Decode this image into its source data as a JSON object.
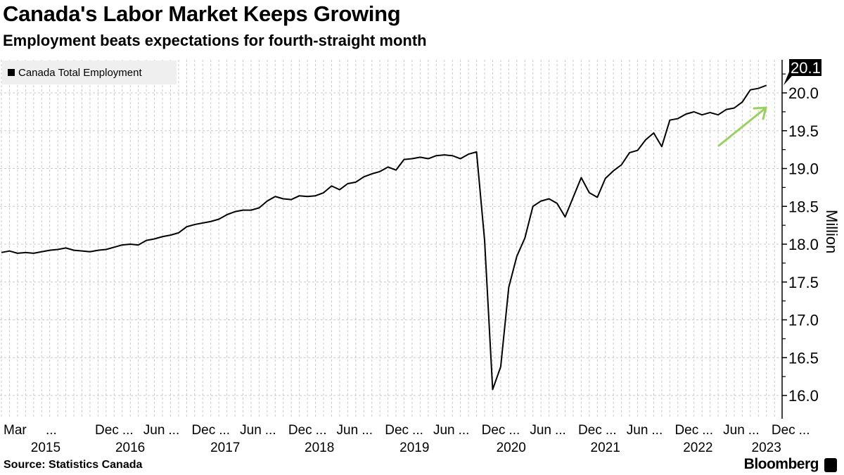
{
  "chart_data": {
    "type": "line",
    "title": "Canada's Labor Market Keeps Growing",
    "subtitle": "Employment beats expectations for fourth-straight month",
    "ylabel": "Million",
    "xlabel": "",
    "ylim": [
      15.7,
      20.4
    ],
    "yticks": [
      "16.0",
      "16.5",
      "17.0",
      "17.5",
      "18.0",
      "18.5",
      "19.0",
      "19.5",
      "20.0"
    ],
    "grid": true,
    "legend_placement": "top-left",
    "series": [
      {
        "name": "Canada Total Employment",
        "start": "Mar 2015",
        "frequency": "monthly",
        "values": [
          17.89,
          17.91,
          17.88,
          17.89,
          17.88,
          17.9,
          17.92,
          17.93,
          17.95,
          17.92,
          17.91,
          17.9,
          17.92,
          17.93,
          17.96,
          17.99,
          18.0,
          17.99,
          18.05,
          18.07,
          18.1,
          18.12,
          18.15,
          18.23,
          18.26,
          18.28,
          18.3,
          18.33,
          18.39,
          18.43,
          18.45,
          18.45,
          18.48,
          18.57,
          18.63,
          18.6,
          18.59,
          18.64,
          18.63,
          18.64,
          18.68,
          18.77,
          18.72,
          18.8,
          18.82,
          18.89,
          18.93,
          18.96,
          19.02,
          18.98,
          19.12,
          19.13,
          19.15,
          19.13,
          19.17,
          19.18,
          19.17,
          19.13,
          19.19,
          19.22,
          18.05,
          16.08,
          16.38,
          17.43,
          17.84,
          18.08,
          18.5,
          18.57,
          18.6,
          18.54,
          18.36,
          18.62,
          18.88,
          18.68,
          18.62,
          18.87,
          18.97,
          19.05,
          19.21,
          19.24,
          19.38,
          19.47,
          19.29,
          19.64,
          19.66,
          19.72,
          19.75,
          19.71,
          19.74,
          19.71,
          19.78,
          19.8,
          19.88,
          20.04,
          20.06,
          20.1
        ]
      }
    ],
    "last_value_label": "20.1",
    "x_tick_labels": [
      {
        "text": "Mar",
        "m": 0
      },
      {
        "text": "...",
        "m": 5
      },
      {
        "text": "Dec",
        "m": 9
      },
      {
        "text": "...",
        "m": 11
      },
      {
        "text": "Jun",
        "m": 15
      },
      {
        "text": "...",
        "m": 17
      },
      {
        "text": "Dec",
        "m": 21
      },
      {
        "text": "...",
        "m": 23
      },
      {
        "text": "Jun",
        "m": 27
      },
      {
        "text": "...",
        "m": 29
      },
      {
        "text": "Dec",
        "m": 33
      },
      {
        "text": "...",
        "m": 35
      },
      {
        "text": "Jun",
        "m": 39
      },
      {
        "text": "...",
        "m": 41
      },
      {
        "text": "Dec",
        "m": 45
      },
      {
        "text": "...",
        "m": 47
      },
      {
        "text": "Jun",
        "m": 51
      },
      {
        "text": "...",
        "m": 53
      },
      {
        "text": "Dec",
        "m": 57
      },
      {
        "text": "...",
        "m": 59
      },
      {
        "text": "Jun",
        "m": 63
      },
      {
        "text": "...",
        "m": 65
      },
      {
        "text": "Dec",
        "m": 69
      },
      {
        "text": "...",
        "m": 71
      },
      {
        "text": "Jun",
        "m": 75
      },
      {
        "text": "...",
        "m": 77
      },
      {
        "text": "Dec",
        "m": 81
      },
      {
        "text": "...",
        "m": 83
      },
      {
        "text": "Jun",
        "m": 87
      },
      {
        "text": "...",
        "m": 89
      },
      {
        "text": "Dec",
        "m": 93
      },
      {
        "text": "...",
        "m": 95
      }
    ],
    "x_year_labels": [
      {
        "text": "2015",
        "m": 2
      },
      {
        "text": "2016",
        "m": 12.5
      },
      {
        "text": "2017",
        "m": 24.3
      },
      {
        "text": "2018",
        "m": 36
      },
      {
        "text": "2019",
        "m": 47.8
      },
      {
        "text": "2020",
        "m": 59.8
      },
      {
        "text": "2021",
        "m": 71.5
      },
      {
        "text": "2022",
        "m": 83
      },
      {
        "text": "2023",
        "m": 91.5
      }
    ],
    "annotation": {
      "type": "arrow",
      "color": "#99d25a",
      "direction": "up-right"
    }
  },
  "footer": {
    "source": "Source: Statistics Canada",
    "brand": "Bloomberg"
  },
  "colors": {
    "line": "#000000",
    "grid": "#c8c8c8",
    "legend_bg": "#efefef"
  }
}
